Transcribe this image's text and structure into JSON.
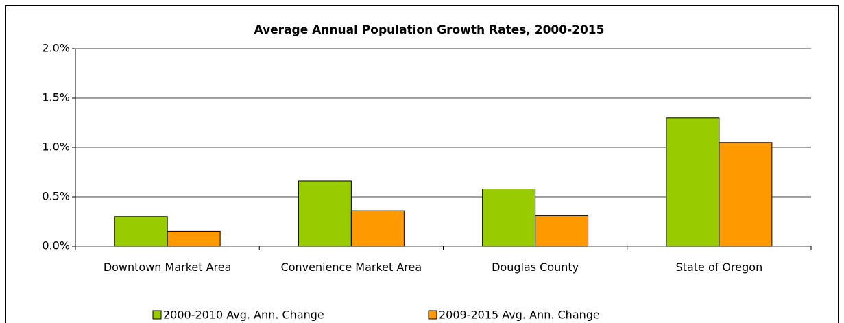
{
  "chart_data": {
    "type": "bar",
    "title": "Average Annual Population Growth Rates, 2000-2015",
    "categories": [
      "Downtown Market Area",
      "Convenience Market Area",
      "Douglas County",
      "State of Oregon"
    ],
    "series": [
      {
        "name": "2000-2010 Avg. Ann. Change",
        "color": "#99cc00",
        "values": [
          0.3,
          0.66,
          0.58,
          1.3
        ]
      },
      {
        "name": "2009-2015 Avg. Ann. Change",
        "color": "#ff9900",
        "values": [
          0.15,
          0.36,
          0.31,
          1.05
        ]
      }
    ],
    "ylim": [
      0,
      2
    ],
    "yticks": [
      {
        "value": 0,
        "label": "0.0%"
      },
      {
        "value": 0.5,
        "label": "0.5%"
      },
      {
        "value": 1,
        "label": "1.0%"
      },
      {
        "value": 1.5,
        "label": "1.5%"
      },
      {
        "value": 2,
        "label": "2.0%"
      }
    ],
    "grid": true,
    "legend": "bottom"
  }
}
